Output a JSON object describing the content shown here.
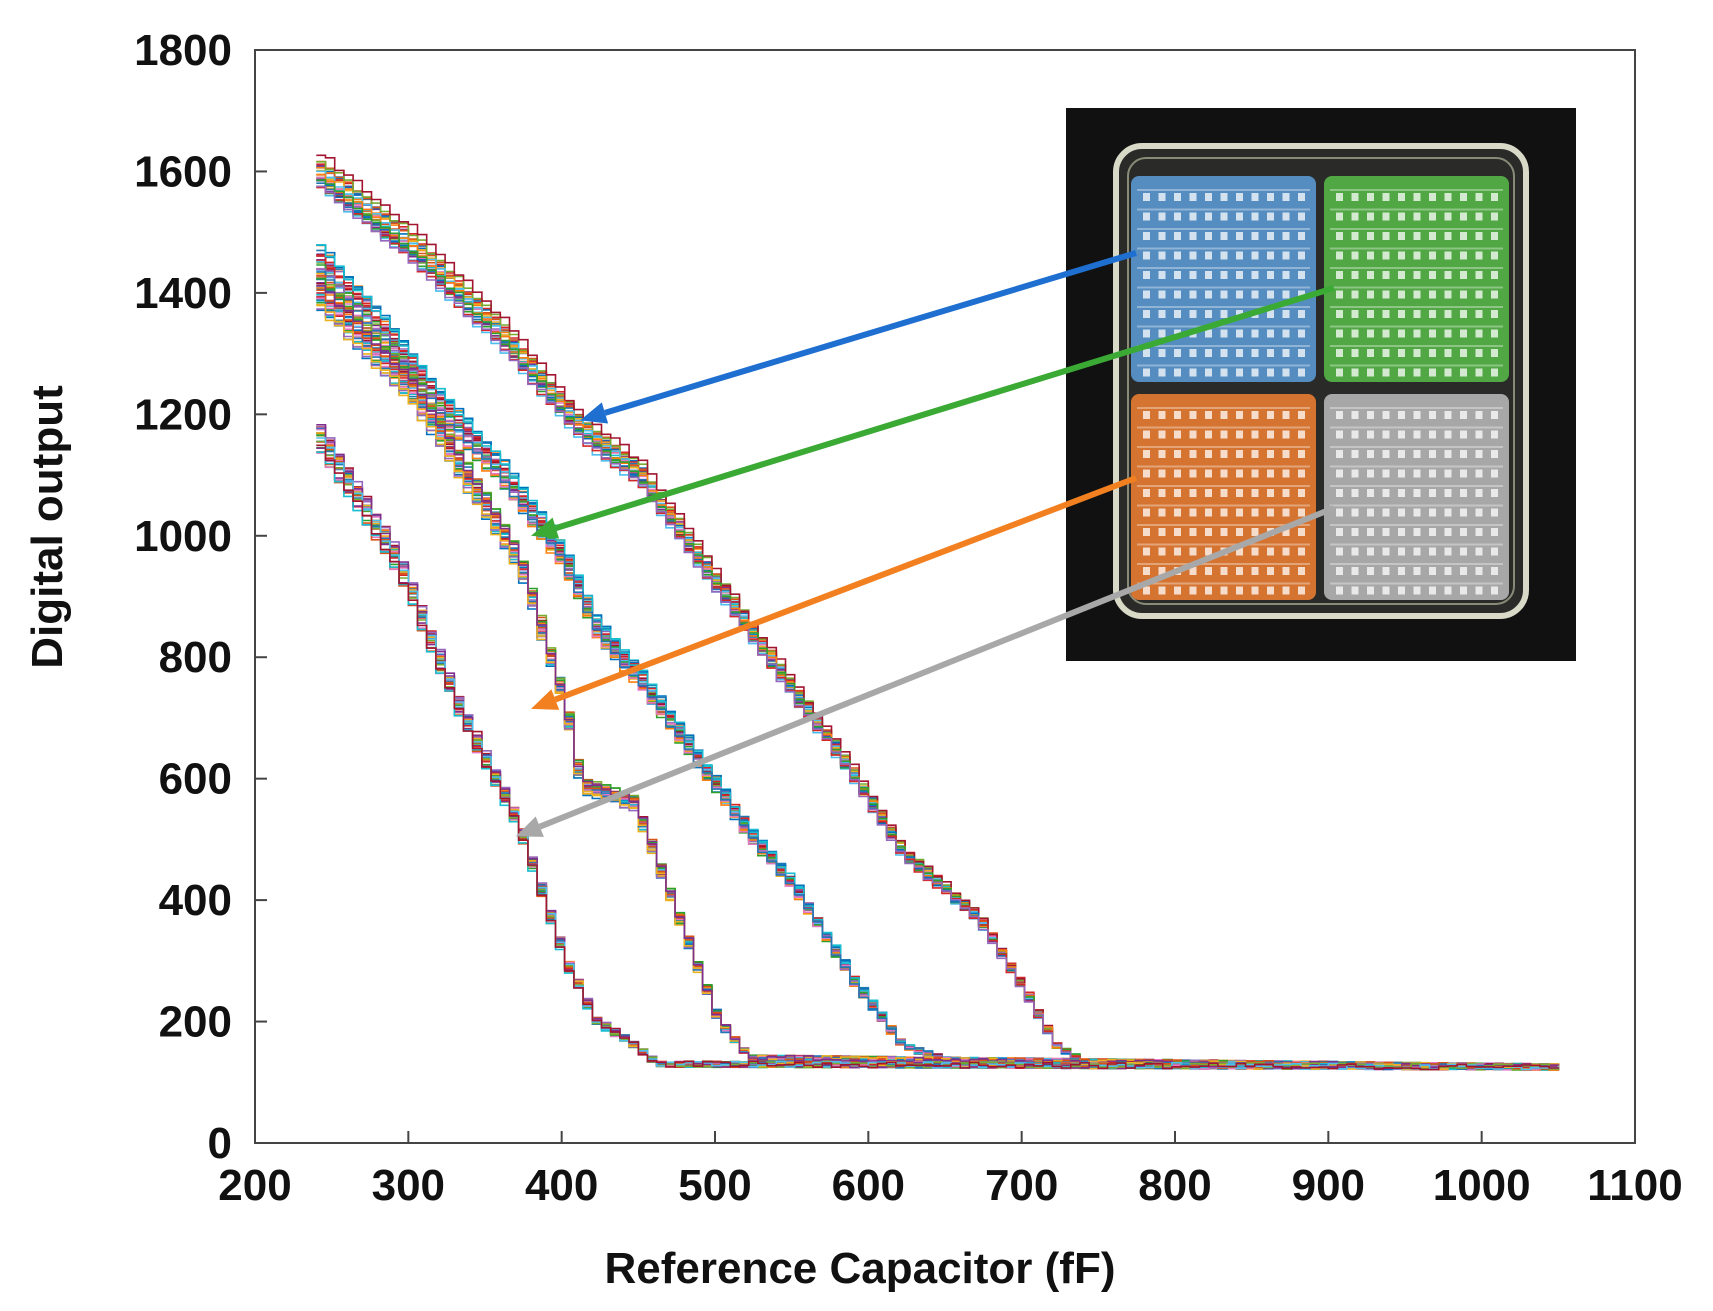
{
  "chart_data": {
    "type": "line",
    "title": "",
    "xlabel": "Reference Capacitor (fF)",
    "ylabel": "Digital output",
    "xlim": [
      200,
      1100
    ],
    "ylim": [
      0,
      1800
    ],
    "grid": false,
    "x_ticks": [
      "200",
      "300",
      "400",
      "500",
      "600",
      "700",
      "800",
      "900",
      "1000",
      "1100"
    ],
    "y_ticks": [
      "0",
      "200",
      "400",
      "600",
      "800",
      "1000",
      "1200",
      "1400",
      "1600",
      "1800"
    ],
    "series_groups": [
      {
        "name": "blue-quadrant",
        "color": "#1f6fd1",
        "curve": [
          [
            240,
            1600
          ],
          [
            300,
            1480
          ],
          [
            360,
            1330
          ],
          [
            410,
            1180
          ],
          [
            450,
            1100
          ],
          [
            500,
            920
          ],
          [
            545,
            760
          ],
          [
            585,
            620
          ],
          [
            620,
            480
          ],
          [
            670,
            370
          ],
          [
            700,
            250
          ],
          [
            720,
            160
          ],
          [
            740,
            130
          ],
          [
            1050,
            125
          ]
        ]
      },
      {
        "name": "green-quadrant",
        "color": "#3aaa35",
        "curve": [
          [
            240,
            1450
          ],
          [
            280,
            1340
          ],
          [
            320,
            1210
          ],
          [
            360,
            1100
          ],
          [
            400,
            960
          ],
          [
            420,
            850
          ],
          [
            450,
            760
          ],
          [
            490,
            620
          ],
          [
            520,
            510
          ],
          [
            550,
            420
          ],
          [
            590,
            260
          ],
          [
            620,
            160
          ],
          [
            650,
            135
          ],
          [
            1050,
            125
          ]
        ]
      },
      {
        "name": "orange-quadrant",
        "color": "#f28020",
        "curve": [
          [
            240,
            1400
          ],
          [
            300,
            1240
          ],
          [
            340,
            1080
          ],
          [
            370,
            960
          ],
          [
            400,
            720
          ],
          [
            410,
            590
          ],
          [
            445,
            560
          ],
          [
            480,
            330
          ],
          [
            500,
            200
          ],
          [
            520,
            140
          ],
          [
            1050,
            125
          ]
        ]
      },
      {
        "name": "gray-quadrant",
        "color": "#a8a8a8",
        "curve": [
          [
            240,
            1160
          ],
          [
            290,
            960
          ],
          [
            330,
            720
          ],
          [
            370,
            520
          ],
          [
            400,
            300
          ],
          [
            420,
            200
          ],
          [
            440,
            170
          ],
          [
            460,
            130
          ],
          [
            1050,
            125
          ]
        ]
      }
    ],
    "inset": {
      "type": "chip-micrograph",
      "quadrants": [
        {
          "name": "blue",
          "color": "#5b9bd5"
        },
        {
          "name": "green",
          "color": "#56b848"
        },
        {
          "name": "orange",
          "color": "#ed7d31"
        },
        {
          "name": "gray",
          "color": "#b8b8b8"
        }
      ]
    }
  }
}
